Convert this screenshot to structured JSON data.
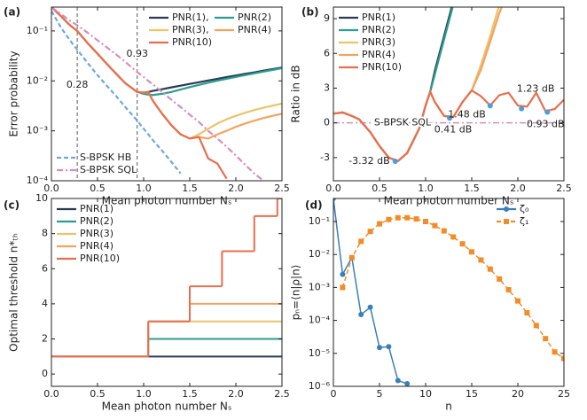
{
  "chart_data": [
    {
      "type": "line",
      "label": "(a)",
      "xlabel": "Mean photon number Nₛ",
      "ylabel": "Error probability",
      "ylog": true,
      "xlim": [
        0,
        2.5
      ],
      "ylim": [
        0.0001,
        0.3
      ],
      "xticks": [
        {
          "value": 0,
          "label": "0.0"
        },
        0.5,
        {
          "value": 1,
          "label": "1.0"
        },
        1.5,
        {
          "value": 2,
          "label": "2.0"
        },
        2.5
      ],
      "yticks": [
        {
          "value": 0.0001,
          "label": "10⁻⁴"
        },
        {
          "value": 0.001,
          "label": "10⁻³"
        },
        {
          "value": 0.01,
          "label": "10⁻²"
        },
        {
          "value": 0.1,
          "label": "10⁻¹"
        }
      ],
      "x": [
        0,
        0.1,
        0.2,
        0.28,
        0.4,
        0.5,
        0.6,
        0.7,
        0.8,
        0.93,
        1.0,
        1.05,
        1.1,
        1.2,
        1.3,
        1.4,
        1.5,
        1.6,
        1.7,
        1.8,
        1.9,
        2.0,
        2.1,
        2.2,
        2.3,
        2.4,
        2.5
      ],
      "series": [
        {
          "name": "PNR(1),",
          "color": "#2b3a55",
          "values": [
            0.3,
            0.2,
            0.13,
            0.1,
            0.055,
            0.035,
            0.022,
            0.014,
            0.009,
            0.006,
            0.0058,
            0.006,
            0.0063,
            0.0068,
            0.0074,
            0.008,
            0.0087,
            0.0094,
            0.0102,
            0.011,
            0.0119,
            0.0128,
            0.0138,
            0.0148,
            0.016,
            0.0172,
            0.0185
          ]
        },
        {
          "name": "PNR(2)",
          "color": "#2a9d8f",
          "values": [
            0.3,
            0.2,
            0.13,
            0.1,
            0.055,
            0.035,
            0.022,
            0.014,
            0.009,
            0.006,
            0.0055,
            0.0053,
            0.0052,
            0.0055,
            0.006,
            0.0067,
            0.0075,
            0.0083,
            0.0092,
            0.0101,
            0.011,
            0.012,
            0.013,
            0.0141,
            0.0153,
            0.0166,
            0.018
          ]
        },
        {
          "name": "PNR(3),",
          "color": "#e9c46a",
          "values": [
            0.3,
            0.2,
            0.13,
            0.1,
            0.055,
            0.035,
            0.022,
            0.014,
            0.009,
            0.006,
            0.0058,
            0.006,
            0.004,
            0.0022,
            0.0013,
            0.00085,
            0.0007,
            0.00085,
            0.0011,
            0.0014,
            0.0017,
            0.002,
            0.0023,
            0.0026,
            0.0029,
            0.0032,
            0.0035
          ]
        },
        {
          "name": "PNR(4)",
          "color": "#f4a261",
          "values": [
            0.3,
            0.2,
            0.13,
            0.1,
            0.055,
            0.035,
            0.022,
            0.014,
            0.009,
            0.006,
            0.0058,
            0.006,
            0.004,
            0.0022,
            0.0013,
            0.00085,
            0.0007,
            0.00075,
            0.0007,
            0.00085,
            0.001,
            0.0012,
            0.0014,
            0.0016,
            0.0018,
            0.002,
            0.0022
          ]
        },
        {
          "name": "PNR(10)",
          "color": "#e76f51",
          "values": [
            0.3,
            0.2,
            0.13,
            0.1,
            0.055,
            0.035,
            0.022,
            0.014,
            0.009,
            0.006,
            0.0058,
            0.006,
            0.004,
            0.0022,
            0.0013,
            0.00085,
            0.0007,
            0.00075,
            0.00028,
            0.00022,
            0.00011,
            null,
            null,
            null,
            null,
            null,
            null
          ]
        },
        {
          "name": "S-BPSK HB",
          "color": "#6fa8dc",
          "dash": "dashed",
          "values": [
            0.25,
            0.12,
            0.065,
            0.042,
            0.022,
            0.013,
            0.008,
            0.005,
            0.003,
            0.0016,
            0.0011,
            0.00085,
            0.00065,
            0.0004,
            0.00024,
            0.00014,
            null,
            null,
            null,
            null,
            null,
            null,
            null,
            null,
            null,
            null,
            null
          ]
        },
        {
          "name": "S-BPSK SQL",
          "color": "#d48fbf",
          "dash": "dashdot",
          "values": [
            0.3,
            0.22,
            0.16,
            0.13,
            0.09,
            0.065,
            0.047,
            0.034,
            0.024,
            0.015,
            0.012,
            0.01,
            0.0085,
            0.006,
            0.0042,
            0.003,
            0.0021,
            0.0015,
            0.001,
            0.0007,
            0.00048,
            0.00032,
            0.00021,
            0.00014,
            0.0001,
            null,
            null
          ]
        }
      ],
      "legends": [
        {
          "loc": "upper right",
          "columns": 2,
          "series": [
            0,
            1,
            2,
            3,
            4
          ]
        },
        {
          "loc": "lower left",
          "columns": 1,
          "series": [
            5,
            6
          ]
        }
      ],
      "vlines": [
        {
          "value": 0.28,
          "label": "0.28"
        },
        {
          "value": 0.93,
          "label": "0.93"
        }
      ]
    },
    {
      "type": "line",
      "label": "(b)",
      "xlabel": "Mean photon number Nₛ",
      "ylabel": "Ratio in dB",
      "ylog": false,
      "xlim": [
        0,
        2.5
      ],
      "ylim": [
        -5,
        10
      ],
      "xticks": [
        {
          "value": 0,
          "label": "0.0"
        },
        0.5,
        {
          "value": 1,
          "label": "1.0"
        },
        1.5,
        {
          "value": 2,
          "label": "2.0"
        },
        2.5
      ],
      "yticks": [
        -3,
        0,
        3,
        6,
        9
      ],
      "x": [
        0,
        0.1,
        0.2,
        0.28,
        0.4,
        0.5,
        0.6,
        0.7,
        0.8,
        0.93,
        1.0,
        1.05,
        1.1,
        1.2,
        1.3,
        1.4,
        1.5,
        1.6,
        1.7,
        1.8,
        1.9,
        2.0,
        2.1,
        2.2,
        2.3,
        2.4,
        2.5
      ],
      "series": [
        {
          "name": "PNR(1)",
          "color": "#2b3a55",
          "values": [
            0.8,
            0.9,
            0.6,
            0.3,
            -0.8,
            -2,
            -3,
            -3.3,
            -2.6,
            -0.5,
            1.5,
            2.7,
            4.5,
            7.5,
            10.5,
            null,
            null,
            null,
            null,
            null,
            null,
            null,
            null,
            null,
            null,
            null,
            null
          ]
        },
        {
          "name": "PNR(2)",
          "color": "#2a9d8f",
          "values": [
            0.8,
            0.9,
            0.6,
            0.3,
            -0.8,
            -2,
            -3,
            -3.3,
            -2.6,
            -0.5,
            1.5,
            2.7,
            4.2,
            7.2,
            10.2,
            null,
            null,
            null,
            null,
            null,
            null,
            null,
            null,
            null,
            null,
            null,
            null
          ]
        },
        {
          "name": "PNR(3)",
          "color": "#e9c46a",
          "values": [
            0.8,
            0.9,
            0.6,
            0.3,
            -0.8,
            -2,
            -3,
            -3.3,
            -2.6,
            -0.5,
            1.5,
            2.7,
            1.8,
            0.6,
            0.5,
            1.8,
            2.8,
            5,
            7.5,
            10.2,
            null,
            null,
            null,
            null,
            null,
            null,
            null
          ]
        },
        {
          "name": "PNR(4)",
          "color": "#f4a261",
          "values": [
            0.8,
            0.9,
            0.6,
            0.3,
            -0.8,
            -2,
            -3,
            -3.3,
            -2.6,
            -0.5,
            1.5,
            2.7,
            1.8,
            0.6,
            0.5,
            1.8,
            2.8,
            4.6,
            7,
            9.5,
            11.5,
            null,
            null,
            null,
            null,
            null,
            null
          ]
        },
        {
          "name": "PNR(10)",
          "color": "#e76f51",
          "values": [
            0.8,
            0.9,
            0.6,
            0.3,
            -0.8,
            -2,
            -3,
            -3.3,
            -2.6,
            -0.5,
            1.5,
            2.7,
            1.8,
            0.6,
            0.5,
            1.8,
            2.8,
            2.3,
            1.5,
            2.4,
            2.6,
            1.5,
            1.4,
            2.6,
            1.0,
            1.2,
            2.0
          ]
        }
      ],
      "legends": [
        {
          "loc": "upper left",
          "columns": 1,
          "series": [
            0,
            1,
            2,
            3,
            4
          ]
        }
      ],
      "hlines": [
        {
          "value": 0,
          "label": "S-BPSK SQL",
          "color": "#d48fbf"
        }
      ],
      "points": [
        {
          "x": 0.67,
          "y": -3.32,
          "label": "-3.32 dB"
        },
        {
          "x": 1.26,
          "y": 0.41,
          "label": "0.41 dB"
        },
        {
          "x": 1.7,
          "y": 1.48,
          "label": "1.48 dB"
        },
        {
          "x": 2.04,
          "y": 1.23,
          "label": "1.23 dB"
        },
        {
          "x": 2.32,
          "y": 0.93,
          "label": "0.93 dB"
        }
      ],
      "point_color": "#4a9fd6"
    },
    {
      "type": "step",
      "label": "(c)",
      "xlabel": "Mean photon number Nₛ",
      "ylabel": "Optimal threshold n*ₜₕ",
      "ylog": false,
      "xlim": [
        0,
        2.5
      ],
      "ylim": [
        -0.7,
        10
      ],
      "xticks": [
        {
          "value": 0,
          "label": "0.0"
        },
        0.5,
        {
          "value": 1,
          "label": "1.0"
        },
        1.5,
        {
          "value": 2,
          "label": "2.0"
        },
        2.5
      ],
      "yticks": [
        0,
        2,
        4,
        6,
        8,
        10
      ],
      "series": [
        {
          "name": "PNR(1)",
          "color": "#2b3a55",
          "x": [
            0
          ],
          "values": [
            1
          ]
        },
        {
          "name": "PNR(2)",
          "color": "#2a9d8f",
          "x": [
            0,
            1.05
          ],
          "values": [
            1,
            2
          ]
        },
        {
          "name": "PNR(3)",
          "color": "#e9c46a",
          "x": [
            0,
            1.05
          ],
          "values": [
            1,
            3
          ]
        },
        {
          "name": "PNR(4)",
          "color": "#f4a261",
          "x": [
            0,
            1.05,
            1.5
          ],
          "values": [
            1,
            3,
            4
          ]
        },
        {
          "name": "PNR(10)",
          "color": "#e76f51",
          "x": [
            0,
            1.05,
            1.5,
            1.85,
            2.2,
            2.45
          ],
          "values": [
            1,
            3,
            5,
            7,
            9,
            10
          ]
        }
      ],
      "legends": [
        {
          "loc": "upper left",
          "columns": 1,
          "series": [
            0,
            1,
            2,
            3,
            4
          ]
        }
      ]
    },
    {
      "type": "line",
      "label": "(d)",
      "xlabel": "n",
      "ylabel": "pₙ=⟨n|ρ|n⟩",
      "ylog": true,
      "xlim": [
        0,
        25
      ],
      "ylim": [
        1e-06,
        0.5
      ],
      "xticks": [
        0,
        5,
        10,
        15,
        20,
        25
      ],
      "yticks": [
        {
          "value": 1e-06,
          "label": "10⁻⁶"
        },
        {
          "value": 1e-05,
          "label": "10⁻⁵"
        },
        {
          "value": 0.0001,
          "label": "10⁻⁴"
        },
        {
          "value": 0.001,
          "label": "10⁻³"
        },
        {
          "value": 0.01,
          "label": "10⁻²"
        },
        {
          "value": 0.1,
          "label": "10⁻¹"
        }
      ],
      "series": [
        {
          "name": "ζ₀",
          "color": "#3a7fb8",
          "marker": "o",
          "x": [
            0,
            1,
            2,
            3,
            4,
            5,
            6,
            7,
            8
          ],
          "values": [
            0.5,
            0.0025,
            0.008,
            0.00015,
            0.00025,
            1.5e-05,
            1.6e-05,
            1.5e-06,
            1.2e-06
          ]
        },
        {
          "name": "ζ₁",
          "color": "#f28c28",
          "marker": "s",
          "dash": "dashed",
          "x": [
            1,
            2,
            3,
            4,
            5,
            6,
            7,
            8,
            9,
            10,
            11,
            12,
            13,
            14,
            15,
            16,
            17,
            18,
            19,
            20,
            21,
            22,
            23,
            24,
            25
          ],
          "values": [
            0.001,
            0.008,
            0.025,
            0.05,
            0.085,
            0.115,
            0.13,
            0.13,
            0.12,
            0.1,
            0.075,
            0.052,
            0.034,
            0.021,
            0.012,
            0.0068,
            0.0036,
            0.0018,
            0.00085,
            0.00039,
            0.00017,
            7e-05,
            2.8e-05,
            1.1e-05,
            7e-06
          ]
        }
      ],
      "legends": [
        {
          "loc": "upper right",
          "columns": 1,
          "series": [
            0,
            1
          ]
        }
      ]
    }
  ]
}
